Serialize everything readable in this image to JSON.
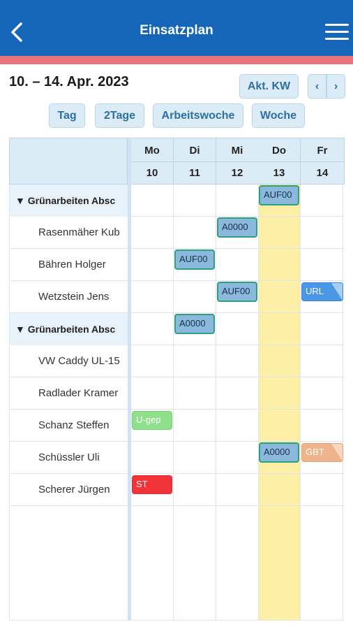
{
  "header": {
    "title": "Einsatzplan"
  },
  "date_range": "10. – 14. Apr. 2023",
  "nav": {
    "current_week": "Akt. KW",
    "prev": "‹",
    "next": "›"
  },
  "views": {
    "day": "Tag",
    "two_days": "2Tage",
    "work_week": "Arbeitswoche",
    "week": "Woche"
  },
  "days": [
    {
      "weekday": "Mo",
      "date": "10"
    },
    {
      "weekday": "Di",
      "date": "11"
    },
    {
      "weekday": "Mi",
      "date": "12"
    },
    {
      "weekday": "Do",
      "date": "13"
    },
    {
      "weekday": "Fr",
      "date": "14"
    }
  ],
  "rows": [
    {
      "label": "▼ Grünarbeiten Absc",
      "type": "group"
    },
    {
      "label": "Rasenmäher Kub",
      "type": "res"
    },
    {
      "label": "Bähren Holger",
      "type": "res"
    },
    {
      "label": "Wetzstein Jens",
      "type": "res"
    },
    {
      "label": "▼ Grünarbeiten Absc",
      "type": "group"
    },
    {
      "label": "VW Caddy UL-15",
      "type": "res"
    },
    {
      "label": "Radlader Kramer",
      "type": "res"
    },
    {
      "label": "Schanz Steffen",
      "type": "res"
    },
    {
      "label": "Schüssler Uli",
      "type": "res"
    },
    {
      "label": "Scherer Jürgen",
      "type": "res"
    }
  ],
  "events": [
    {
      "row": 0,
      "day": 3,
      "text": "AUF00",
      "kind": "job"
    },
    {
      "row": 1,
      "day": 2,
      "text": "A0000",
      "kind": "job"
    },
    {
      "row": 2,
      "day": 1,
      "text": "AUF00",
      "kind": "job"
    },
    {
      "row": 3,
      "day": 2,
      "text": "AUF00",
      "kind": "job"
    },
    {
      "row": 3,
      "day": 4,
      "text": "URL",
      "kind": "url"
    },
    {
      "row": 4,
      "day": 1,
      "text": "A0000",
      "kind": "job"
    },
    {
      "row": 7,
      "day": 0,
      "text": "U-gep",
      "kind": "ugep"
    },
    {
      "row": 8,
      "day": 3,
      "text": "A0000",
      "kind": "job"
    },
    {
      "row": 8,
      "day": 4,
      "text": "GBT",
      "kind": "gbt"
    },
    {
      "row": 9,
      "day": 0,
      "text": "ST",
      "kind": "st"
    }
  ]
}
